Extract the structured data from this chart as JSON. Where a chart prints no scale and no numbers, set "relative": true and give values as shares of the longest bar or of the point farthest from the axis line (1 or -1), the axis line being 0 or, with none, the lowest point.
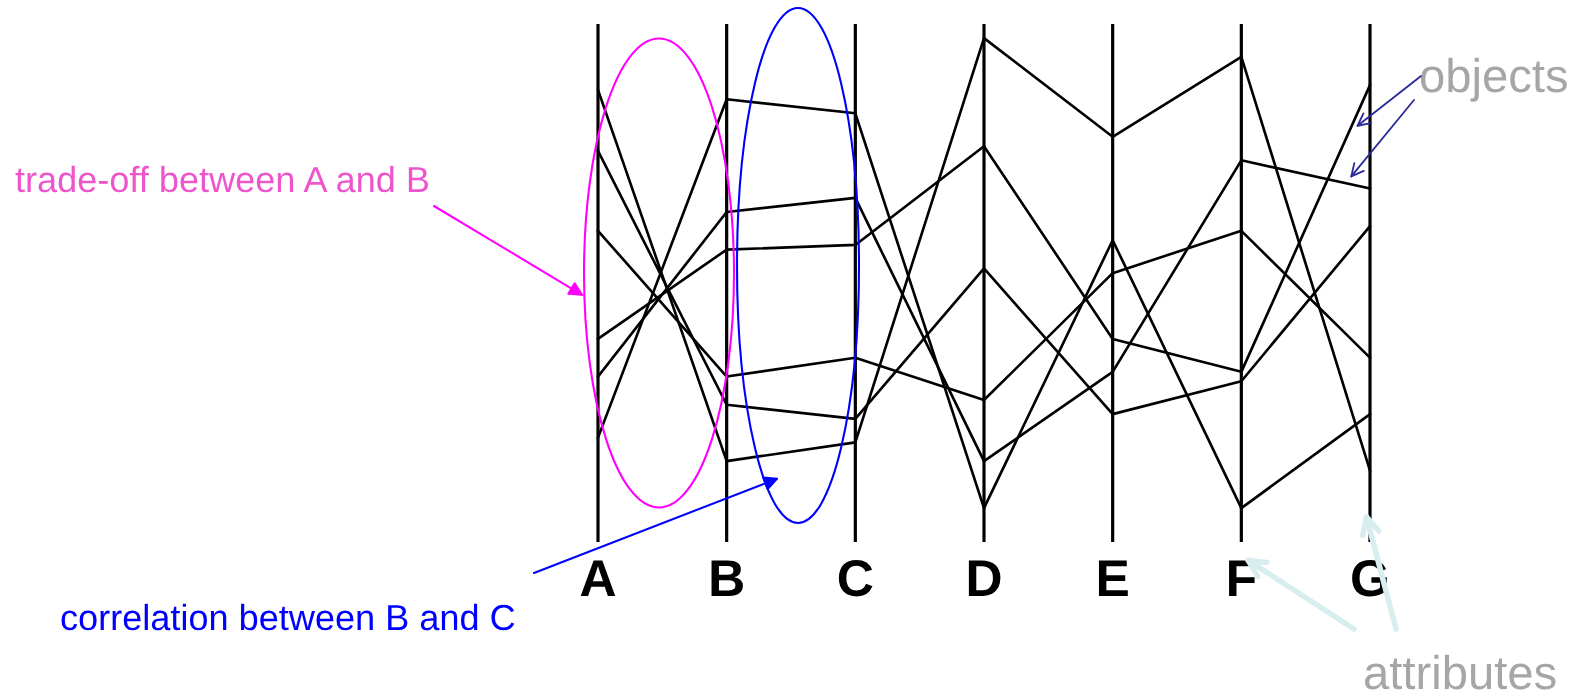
{
  "chart_data": {
    "type": "line",
    "relative": true,
    "categories": [
      "A",
      "B",
      "C",
      "D",
      "E",
      "F",
      "G"
    ],
    "series": [
      {
        "color": "#000000",
        "values": [
          0.89,
          0.1,
          0.14,
          1.0,
          0.79,
          0.96,
          0.08
        ]
      },
      {
        "color": "#000000",
        "values": [
          0.76,
          0.22,
          0.19,
          0.51,
          0.2,
          0.27,
          0.6
        ]
      },
      {
        "color": "#000000",
        "values": [
          0.59,
          0.28,
          0.32,
          0.23,
          0.5,
          0.59,
          0.32
        ]
      },
      {
        "color": "#000000",
        "values": [
          0.36,
          0.55,
          0.56,
          0.77,
          0.36,
          0.29,
          0.9
        ]
      },
      {
        "color": "#000000",
        "values": [
          0.28,
          0.63,
          0.66,
          0.1,
          0.29,
          0.74,
          0.68
        ]
      },
      {
        "color": "#000000",
        "values": [
          0.15,
          0.87,
          0.84,
          0.0,
          0.57,
          0.0,
          0.2
        ]
      }
    ],
    "grid": "x",
    "tick_labels": "x",
    "annotations": [
      "trade-off between A and B",
      "correlation between B and C",
      "objects",
      "attributes"
    ]
  }
}
